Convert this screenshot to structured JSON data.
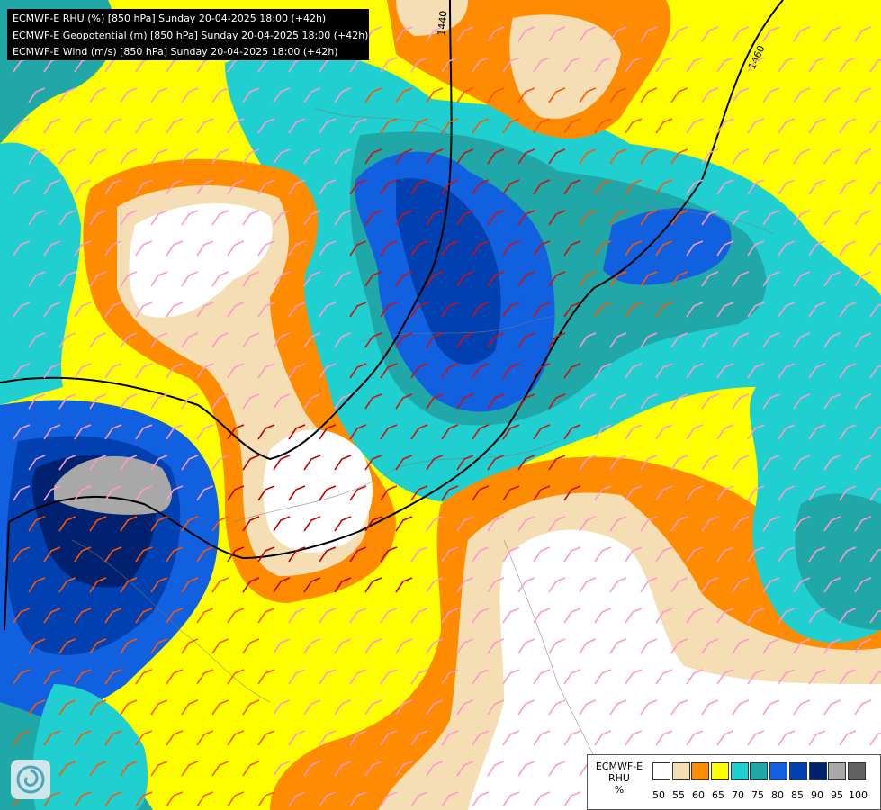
{
  "header": {
    "lines": [
      "ECMWF-E RHU (%) [850 hPa] Sunday 20-04-2025 18:00 (+42h)",
      "ECMWF-E Geopotential (m) [850 hPa] Sunday 20-04-2025 18:00 (+42h)",
      "ECMWF-E Wind (m/s) [850 hPa] Sunday 20-04-2025 18:00 (+42h)"
    ]
  },
  "contours": {
    "labels": [
      "1440",
      "1460"
    ]
  },
  "legend": {
    "title_lines": [
      "ECMWF-E",
      "RHU",
      "%"
    ],
    "colors": [
      "#ffffff",
      "#f5deb3",
      "#ff8c00",
      "#ffff00",
      "#20d0d0",
      "#20a8a8",
      "#1060e0",
      "#0040b0",
      "#002070",
      "#a8a8a8",
      "#606060"
    ],
    "ticks": [
      "50",
      "55",
      "60",
      "65",
      "70",
      "75",
      "80",
      "85",
      "90",
      "95",
      "100"
    ]
  },
  "logo": {
    "icon": "ecmwf-swirl-icon"
  }
}
